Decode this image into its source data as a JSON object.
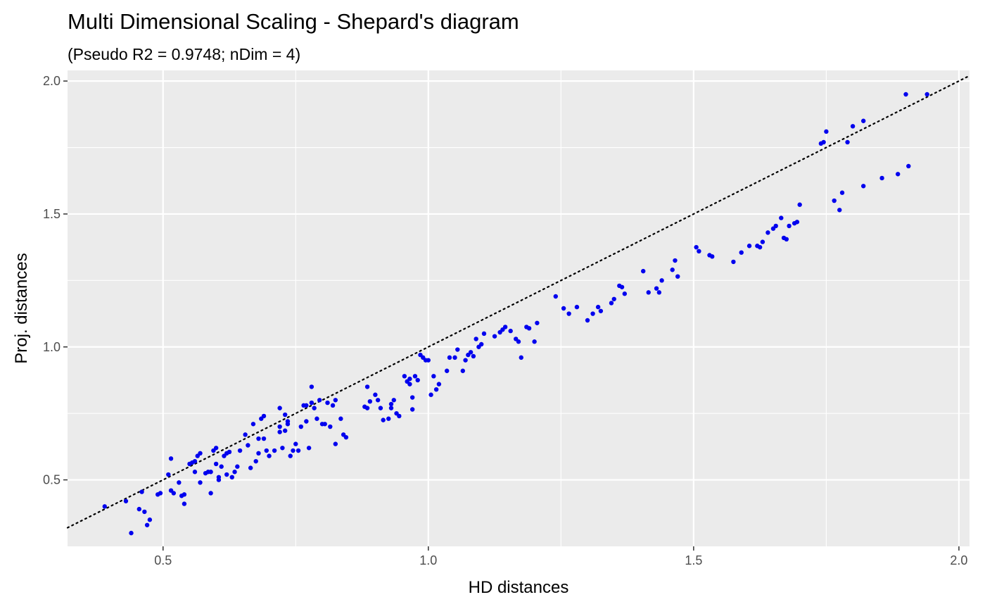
{
  "chart_data": {
    "type": "scatter",
    "title": "Multi Dimensional Scaling - Shepard's diagram",
    "subtitle": "(Pseudo R2 = 0.9748; nDim = 4)",
    "xlabel": "HD distances",
    "ylabel": "Proj. distances",
    "xlim": [
      0.32,
      2.02
    ],
    "ylim": [
      0.25,
      2.04
    ],
    "x_ticks": [
      0.5,
      1.0,
      1.5,
      2.0
    ],
    "x_tick_labels": [
      "0.5",
      "1.0",
      "1.5",
      "2.0"
    ],
    "y_ticks": [
      0.5,
      1.0,
      1.5,
      2.0
    ],
    "y_tick_labels": [
      "0.5",
      "1.0",
      "1.5",
      "2.0"
    ],
    "grid": true,
    "point_color": "#0000ee",
    "reference_line": {
      "type": "identity",
      "style": "dotted",
      "color": "#000000"
    },
    "points": [
      [
        0.39,
        0.4
      ],
      [
        0.43,
        0.42
      ],
      [
        0.44,
        0.3
      ],
      [
        0.455,
        0.39
      ],
      [
        0.46,
        0.455
      ],
      [
        0.465,
        0.38
      ],
      [
        0.47,
        0.33
      ],
      [
        0.475,
        0.35
      ],
      [
        0.49,
        0.445
      ],
      [
        0.495,
        0.45
      ],
      [
        0.51,
        0.52
      ],
      [
        0.515,
        0.58
      ],
      [
        0.515,
        0.46
      ],
      [
        0.52,
        0.45
      ],
      [
        0.53,
        0.49
      ],
      [
        0.535,
        0.44
      ],
      [
        0.54,
        0.41
      ],
      [
        0.54,
        0.445
      ],
      [
        0.55,
        0.56
      ],
      [
        0.555,
        0.565
      ],
      [
        0.56,
        0.57
      ],
      [
        0.56,
        0.53
      ],
      [
        0.565,
        0.59
      ],
      [
        0.57,
        0.6
      ],
      [
        0.57,
        0.49
      ],
      [
        0.58,
        0.525
      ],
      [
        0.585,
        0.53
      ],
      [
        0.59,
        0.45
      ],
      [
        0.59,
        0.53
      ],
      [
        0.595,
        0.61
      ],
      [
        0.6,
        0.62
      ],
      [
        0.6,
        0.56
      ],
      [
        0.605,
        0.51
      ],
      [
        0.605,
        0.5
      ],
      [
        0.61,
        0.55
      ],
      [
        0.615,
        0.59
      ],
      [
        0.62,
        0.52
      ],
      [
        0.62,
        0.6
      ],
      [
        0.625,
        0.605
      ],
      [
        0.63,
        0.51
      ],
      [
        0.635,
        0.53
      ],
      [
        0.64,
        0.55
      ],
      [
        0.645,
        0.61
      ],
      [
        0.655,
        0.67
      ],
      [
        0.66,
        0.63
      ],
      [
        0.665,
        0.545
      ],
      [
        0.67,
        0.71
      ],
      [
        0.675,
        0.57
      ],
      [
        0.68,
        0.655
      ],
      [
        0.68,
        0.6
      ],
      [
        0.685,
        0.73
      ],
      [
        0.69,
        0.655
      ],
      [
        0.69,
        0.74
      ],
      [
        0.695,
        0.61
      ],
      [
        0.7,
        0.59
      ],
      [
        0.71,
        0.61
      ],
      [
        0.72,
        0.77
      ],
      [
        0.72,
        0.7
      ],
      [
        0.72,
        0.68
      ],
      [
        0.725,
        0.62
      ],
      [
        0.73,
        0.745
      ],
      [
        0.73,
        0.685
      ],
      [
        0.735,
        0.71
      ],
      [
        0.735,
        0.72
      ],
      [
        0.74,
        0.59
      ],
      [
        0.745,
        0.61
      ],
      [
        0.75,
        0.635
      ],
      [
        0.755,
        0.61
      ],
      [
        0.76,
        0.7
      ],
      [
        0.765,
        0.78
      ],
      [
        0.77,
        0.72
      ],
      [
        0.77,
        0.78
      ],
      [
        0.775,
        0.62
      ],
      [
        0.78,
        0.79
      ],
      [
        0.78,
        0.85
      ],
      [
        0.785,
        0.77
      ],
      [
        0.79,
        0.73
      ],
      [
        0.795,
        0.8
      ],
      [
        0.8,
        0.71
      ],
      [
        0.805,
        0.71
      ],
      [
        0.81,
        0.79
      ],
      [
        0.815,
        0.7
      ],
      [
        0.82,
        0.78
      ],
      [
        0.825,
        0.635
      ],
      [
        0.825,
        0.8
      ],
      [
        0.835,
        0.73
      ],
      [
        0.84,
        0.67
      ],
      [
        0.845,
        0.66
      ],
      [
        0.88,
        0.775
      ],
      [
        0.885,
        0.77
      ],
      [
        0.885,
        0.85
      ],
      [
        0.89,
        0.795
      ],
      [
        0.9,
        0.82
      ],
      [
        0.905,
        0.8
      ],
      [
        0.91,
        0.77
      ],
      [
        0.915,
        0.725
      ],
      [
        0.925,
        0.73
      ],
      [
        0.93,
        0.77
      ],
      [
        0.93,
        0.785
      ],
      [
        0.935,
        0.8
      ],
      [
        0.94,
        0.75
      ],
      [
        0.945,
        0.74
      ],
      [
        0.955,
        0.89
      ],
      [
        0.96,
        0.87
      ],
      [
        0.965,
        0.86
      ],
      [
        0.965,
        0.88
      ],
      [
        0.97,
        0.81
      ],
      [
        0.97,
        0.765
      ],
      [
        0.975,
        0.89
      ],
      [
        0.98,
        0.875
      ],
      [
        0.985,
        0.97
      ],
      [
        0.99,
        0.96
      ],
      [
        0.995,
        0.95
      ],
      [
        1.0,
        0.95
      ],
      [
        1.005,
        0.82
      ],
      [
        1.01,
        0.89
      ],
      [
        1.015,
        0.84
      ],
      [
        1.02,
        0.86
      ],
      [
        1.035,
        0.91
      ],
      [
        1.04,
        0.96
      ],
      [
        1.05,
        0.96
      ],
      [
        1.055,
        0.99
      ],
      [
        1.065,
        0.91
      ],
      [
        1.07,
        0.95
      ],
      [
        1.075,
        0.97
      ],
      [
        1.08,
        0.98
      ],
      [
        1.085,
        0.965
      ],
      [
        1.09,
        1.03
      ],
      [
        1.095,
        1.0
      ],
      [
        1.1,
        1.01
      ],
      [
        1.105,
        1.05
      ],
      [
        1.125,
        1.04
      ],
      [
        1.135,
        1.055
      ],
      [
        1.14,
        1.065
      ],
      [
        1.145,
        1.075
      ],
      [
        1.155,
        1.06
      ],
      [
        1.165,
        1.03
      ],
      [
        1.17,
        1.02
      ],
      [
        1.175,
        0.96
      ],
      [
        1.185,
        1.075
      ],
      [
        1.19,
        1.07
      ],
      [
        1.2,
        1.02
      ],
      [
        1.205,
        1.09
      ],
      [
        1.24,
        1.19
      ],
      [
        1.255,
        1.145
      ],
      [
        1.265,
        1.125
      ],
      [
        1.28,
        1.15
      ],
      [
        1.3,
        1.1
      ],
      [
        1.31,
        1.125
      ],
      [
        1.32,
        1.15
      ],
      [
        1.325,
        1.135
      ],
      [
        1.345,
        1.165
      ],
      [
        1.35,
        1.18
      ],
      [
        1.36,
        1.23
      ],
      [
        1.365,
        1.225
      ],
      [
        1.37,
        1.2
      ],
      [
        1.405,
        1.285
      ],
      [
        1.415,
        1.205
      ],
      [
        1.43,
        1.22
      ],
      [
        1.435,
        1.205
      ],
      [
        1.44,
        1.25
      ],
      [
        1.46,
        1.29
      ],
      [
        1.465,
        1.325
      ],
      [
        1.47,
        1.265
      ],
      [
        1.505,
        1.375
      ],
      [
        1.51,
        1.36
      ],
      [
        1.53,
        1.345
      ],
      [
        1.535,
        1.34
      ],
      [
        1.575,
        1.32
      ],
      [
        1.59,
        1.355
      ],
      [
        1.605,
        1.38
      ],
      [
        1.62,
        1.38
      ],
      [
        1.625,
        1.375
      ],
      [
        1.63,
        1.395
      ],
      [
        1.64,
        1.43
      ],
      [
        1.65,
        1.445
      ],
      [
        1.655,
        1.455
      ],
      [
        1.665,
        1.485
      ],
      [
        1.67,
        1.41
      ],
      [
        1.675,
        1.405
      ],
      [
        1.68,
        1.455
      ],
      [
        1.69,
        1.465
      ],
      [
        1.695,
        1.47
      ],
      [
        1.7,
        1.535
      ],
      [
        1.765,
        1.55
      ],
      [
        1.775,
        1.515
      ],
      [
        1.78,
        1.58
      ],
      [
        1.82,
        1.605
      ],
      [
        1.855,
        1.635
      ],
      [
        1.885,
        1.65
      ],
      [
        1.905,
        1.68
      ],
      [
        1.74,
        1.765
      ],
      [
        1.745,
        1.77
      ],
      [
        1.75,
        1.81
      ],
      [
        1.79,
        1.77
      ],
      [
        1.8,
        1.83
      ],
      [
        1.82,
        1.85
      ],
      [
        1.9,
        1.95
      ],
      [
        1.94,
        1.95
      ]
    ]
  }
}
